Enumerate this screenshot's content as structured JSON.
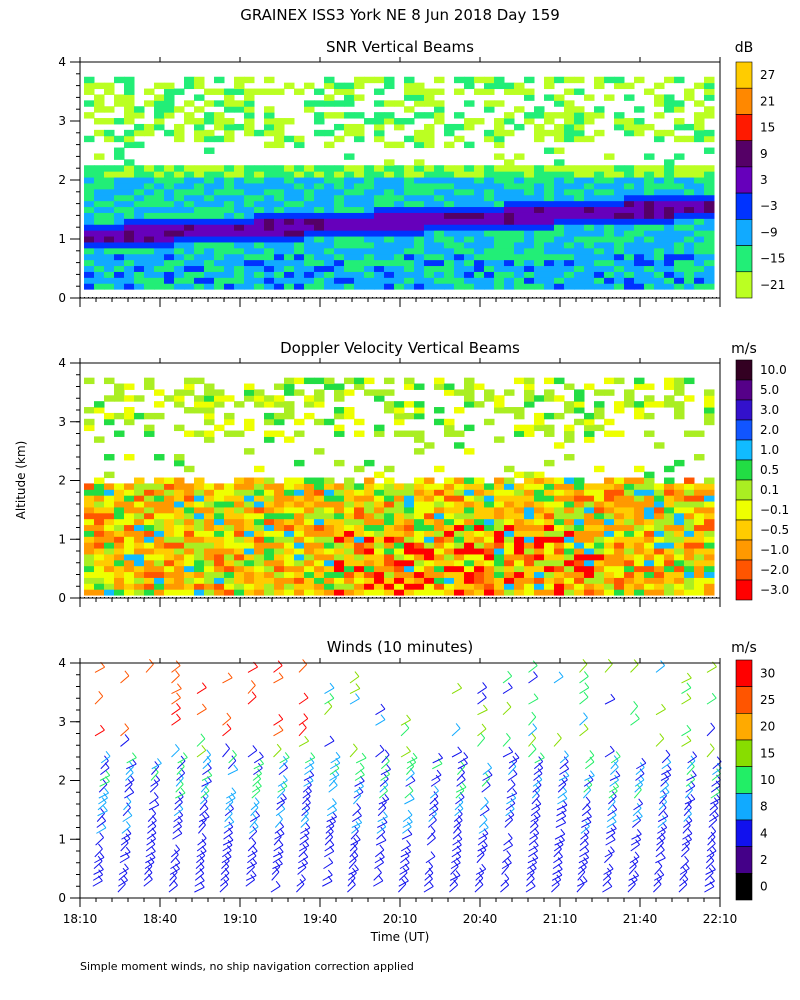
{
  "page": {
    "title": "GRAINEX ISS3 York NE   8 Jun 2018 Day 159",
    "ylabel": "Altitude (km)",
    "xlabel": "Time (UT)",
    "footer": "Simple moment winds, no ship navigation correction applied"
  },
  "chart_data": [
    {
      "type": "heatmap",
      "id": "snr",
      "title": "SNR Vertical Beams",
      "unit": "dB",
      "ylim": [
        0,
        4
      ],
      "yticks": [
        "0",
        "1",
        "2",
        "3",
        "4"
      ],
      "xlim_label": [
        "18:10",
        "22:10"
      ],
      "legend": {
        "labels": [
          "27",
          "21",
          "15",
          "9",
          "3",
          "−3",
          "−9",
          "−15",
          "−21"
        ],
        "colors": [
          "#ffcc00",
          "#ff8800",
          "#ff1a00",
          "#550066",
          "#6600bb",
          "#0033ff",
          "#11aaff",
          "#22ee77",
          "#bbff22"
        ]
      }
    },
    {
      "type": "heatmap",
      "id": "doppler",
      "title": "Doppler Velocity Vertical Beams",
      "unit": "m/s",
      "ylim": [
        0,
        4
      ],
      "yticks": [
        "0",
        "1",
        "2",
        "3",
        "4"
      ],
      "xlim_label": [
        "18:10",
        "22:10"
      ],
      "legend": {
        "labels": [
          "10.0",
          "5.0",
          "3.0",
          "2.0",
          "1.0",
          "0.5",
          "0.1",
          "−0.1",
          "−0.5",
          "−1.0",
          "−2.0",
          "−3.0"
        ],
        "colors": [
          "#330022",
          "#550088",
          "#3311cc",
          "#1155ff",
          "#11bbff",
          "#22dd44",
          "#aaee22",
          "#eeff00",
          "#ffcc00",
          "#ff9900",
          "#ff5500",
          "#ff0000"
        ]
      }
    },
    {
      "type": "scatter",
      "id": "winds",
      "title": "Winds (10 minutes)",
      "unit": "m/s",
      "ylim": [
        0,
        4
      ],
      "yticks": [
        "0",
        "1",
        "2",
        "3",
        "4"
      ],
      "xticks": [
        "18:10",
        "18:40",
        "19:10",
        "19:40",
        "20:10",
        "20:40",
        "21:10",
        "21:40",
        "22:10"
      ],
      "legend": {
        "labels": [
          "30",
          "25",
          "20",
          "15",
          "10",
          "8",
          "4",
          "2",
          "0"
        ],
        "colors": [
          "#ff0000",
          "#ff5500",
          "#ffaa00",
          "#88dd00",
          "#22ee66",
          "#11aaff",
          "#1111ee",
          "#440088",
          "#000000"
        ]
      }
    }
  ]
}
